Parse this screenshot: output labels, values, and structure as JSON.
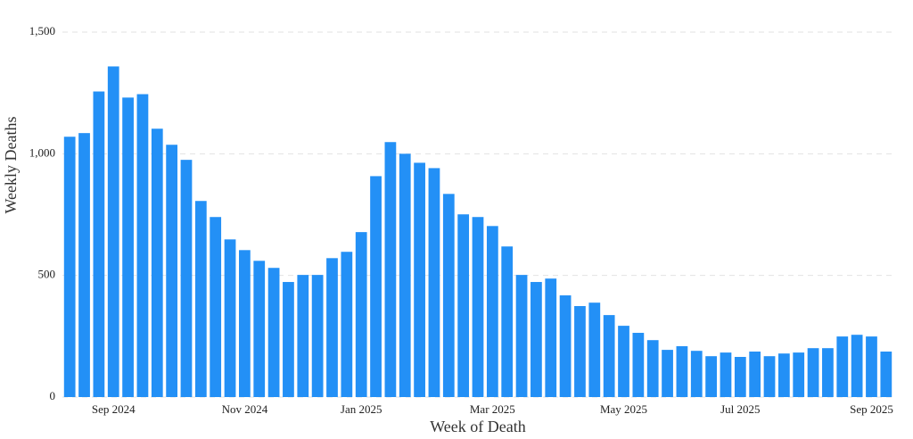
{
  "chart_data": {
    "type": "bar",
    "x_label": "Week of Death",
    "y_label": "Weekly Deaths",
    "color": "#2390f6",
    "grid": true,
    "ylim": [
      0,
      1500
    ],
    "yticks": [
      0,
      500,
      {
        "value": 1000,
        "label": "1,000"
      },
      {
        "value": 1500,
        "label": "1,500"
      }
    ],
    "categories": [
      null,
      null,
      null,
      "Sep 2024",
      null,
      null,
      null,
      null,
      null,
      null,
      null,
      null,
      "Nov 2024",
      null,
      null,
      null,
      null,
      null,
      null,
      null,
      "Jan 2025",
      null,
      null,
      null,
      null,
      null,
      null,
      null,
      null,
      "Mar 2025",
      null,
      null,
      null,
      null,
      null,
      null,
      null,
      null,
      "May 2025",
      null,
      null,
      null,
      null,
      null,
      null,
      null,
      "Jul 2025",
      null,
      null,
      null,
      null,
      null,
      null,
      null,
      null,
      "Sep 2025",
      null
    ],
    "values": [
      1070,
      1085,
      1256,
      1359,
      1231,
      1245,
      1103,
      1037,
      975,
      806,
      740,
      648,
      604,
      560,
      531,
      473,
      502,
      502,
      571,
      597,
      678,
      908,
      1048,
      1000,
      963,
      941,
      835,
      751,
      740,
      703,
      619,
      502,
      473,
      487,
      418,
      374,
      388,
      337,
      293,
      264,
      234,
      194,
      209,
      190,
      168,
      183,
      165,
      187,
      168,
      179,
      183,
      201,
      201,
      249,
      256,
      249,
      187
    ]
  }
}
